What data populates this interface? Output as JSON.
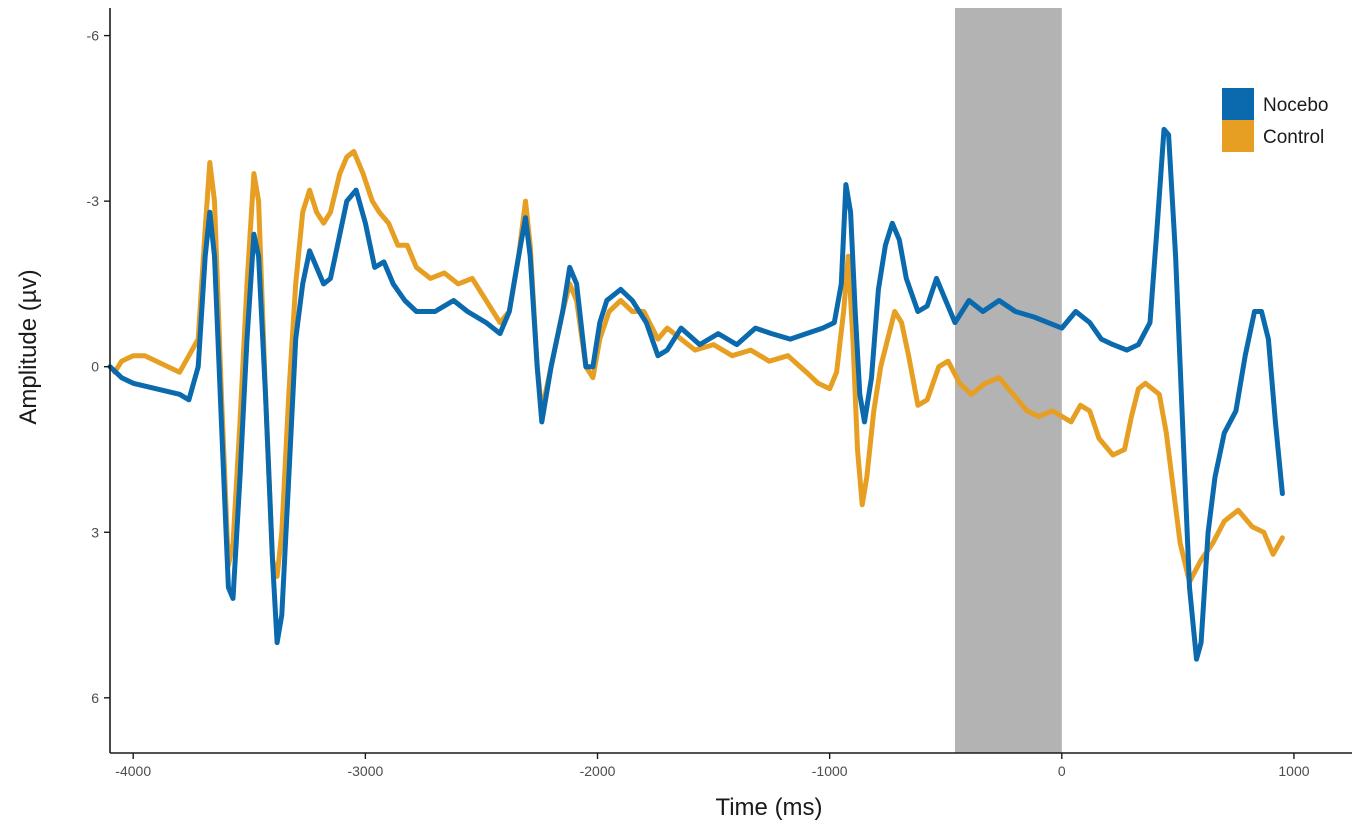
{
  "chart_data": {
    "type": "line",
    "title": "",
    "xlabel": "Time (ms)",
    "ylabel": "Amplitude (µv)",
    "y_reversed": true,
    "xlim": [
      -4100,
      1250
    ],
    "ylim": [
      -6.5,
      7.0
    ],
    "x_ticks": [
      -4000,
      -3000,
      -2000,
      -1000,
      0,
      1000
    ],
    "x_tick_labels": [
      "-4000",
      "-3000",
      "-2000",
      "-1000",
      "0",
      "1000"
    ],
    "y_ticks": [
      -6,
      -3,
      0,
      3,
      6
    ],
    "y_tick_labels": [
      "-6",
      "-3",
      "0",
      "3",
      "6"
    ],
    "grid": false,
    "legend_position": "top-right",
    "shaded_region": {
      "x_start": -460,
      "x_end": 0,
      "color": "#b3b3b3"
    },
    "series": [
      {
        "name": "Nocebo",
        "color": "#0a6aad",
        "points": [
          [
            -4100,
            0.0
          ],
          [
            -4050,
            0.2
          ],
          [
            -4000,
            0.3
          ],
          [
            -3900,
            0.4
          ],
          [
            -3800,
            0.5
          ],
          [
            -3760,
            0.6
          ],
          [
            -3720,
            0.0
          ],
          [
            -3690,
            -2.0
          ],
          [
            -3670,
            -2.8
          ],
          [
            -3650,
            -2.0
          ],
          [
            -3620,
            1.0
          ],
          [
            -3590,
            4.0
          ],
          [
            -3570,
            4.2
          ],
          [
            -3540,
            2.0
          ],
          [
            -3510,
            -0.5
          ],
          [
            -3480,
            -2.4
          ],
          [
            -3460,
            -2.0
          ],
          [
            -3430,
            0.5
          ],
          [
            -3400,
            3.5
          ],
          [
            -3380,
            5.0
          ],
          [
            -3360,
            4.5
          ],
          [
            -3330,
            2.0
          ],
          [
            -3300,
            -0.5
          ],
          [
            -3270,
            -1.5
          ],
          [
            -3240,
            -2.1
          ],
          [
            -3210,
            -1.8
          ],
          [
            -3180,
            -1.5
          ],
          [
            -3150,
            -1.6
          ],
          [
            -3120,
            -2.2
          ],
          [
            -3080,
            -3.0
          ],
          [
            -3040,
            -3.2
          ],
          [
            -3000,
            -2.6
          ],
          [
            -2960,
            -1.8
          ],
          [
            -2920,
            -1.9
          ],
          [
            -2880,
            -1.5
          ],
          [
            -2830,
            -1.2
          ],
          [
            -2780,
            -1.0
          ],
          [
            -2700,
            -1.0
          ],
          [
            -2620,
            -1.2
          ],
          [
            -2560,
            -1.0
          ],
          [
            -2480,
            -0.8
          ],
          [
            -2420,
            -0.6
          ],
          [
            -2380,
            -1.0
          ],
          [
            -2340,
            -2.0
          ],
          [
            -2310,
            -2.7
          ],
          [
            -2290,
            -2.0
          ],
          [
            -2260,
            0.0
          ],
          [
            -2240,
            1.0
          ],
          [
            -2200,
            0.0
          ],
          [
            -2150,
            -1.0
          ],
          [
            -2120,
            -1.8
          ],
          [
            -2090,
            -1.5
          ],
          [
            -2050,
            0.0
          ],
          [
            -2020,
            0.0
          ],
          [
            -1990,
            -0.8
          ],
          [
            -1960,
            -1.2
          ],
          [
            -1900,
            -1.4
          ],
          [
            -1850,
            -1.2
          ],
          [
            -1790,
            -0.8
          ],
          [
            -1740,
            -0.2
          ],
          [
            -1700,
            -0.3
          ],
          [
            -1640,
            -0.7
          ],
          [
            -1560,
            -0.4
          ],
          [
            -1480,
            -0.6
          ],
          [
            -1400,
            -0.4
          ],
          [
            -1320,
            -0.7
          ],
          [
            -1250,
            -0.6
          ],
          [
            -1170,
            -0.5
          ],
          [
            -1100,
            -0.6
          ],
          [
            -1030,
            -0.7
          ],
          [
            -980,
            -0.8
          ],
          [
            -950,
            -1.5
          ],
          [
            -930,
            -3.3
          ],
          [
            -910,
            -2.8
          ],
          [
            -890,
            -1.0
          ],
          [
            -870,
            0.5
          ],
          [
            -850,
            1.0
          ],
          [
            -820,
            0.2
          ],
          [
            -790,
            -1.4
          ],
          [
            -760,
            -2.2
          ],
          [
            -730,
            -2.6
          ],
          [
            -700,
            -2.3
          ],
          [
            -670,
            -1.6
          ],
          [
            -620,
            -1.0
          ],
          [
            -580,
            -1.1
          ],
          [
            -540,
            -1.6
          ],
          [
            -500,
            -1.2
          ],
          [
            -460,
            -0.8
          ],
          [
            -400,
            -1.2
          ],
          [
            -340,
            -1.0
          ],
          [
            -270,
            -1.2
          ],
          [
            -200,
            -1.0
          ],
          [
            -120,
            -0.9
          ],
          [
            -60,
            -0.8
          ],
          [
            0,
            -0.7
          ],
          [
            60,
            -1.0
          ],
          [
            120,
            -0.8
          ],
          [
            170,
            -0.5
          ],
          [
            220,
            -0.4
          ],
          [
            280,
            -0.3
          ],
          [
            330,
            -0.4
          ],
          [
            380,
            -0.8
          ],
          [
            410,
            -2.5
          ],
          [
            440,
            -4.3
          ],
          [
            460,
            -4.2
          ],
          [
            490,
            -2.0
          ],
          [
            520,
            1.0
          ],
          [
            550,
            4.0
          ],
          [
            580,
            5.3
          ],
          [
            600,
            5.0
          ],
          [
            630,
            3.0
          ],
          [
            660,
            2.0
          ],
          [
            700,
            1.2
          ],
          [
            750,
            0.8
          ],
          [
            790,
            -0.2
          ],
          [
            830,
            -1.0
          ],
          [
            860,
            -1.0
          ],
          [
            890,
            -0.5
          ],
          [
            920,
            1.0
          ],
          [
            950,
            2.3
          ]
        ]
      },
      {
        "name": "Control",
        "color": "#e69f22",
        "points": [
          [
            -4080,
            0.1
          ],
          [
            -4050,
            -0.1
          ],
          [
            -4000,
            -0.2
          ],
          [
            -3950,
            -0.2
          ],
          [
            -3900,
            -0.1
          ],
          [
            -3850,
            0.0
          ],
          [
            -3800,
            0.1
          ],
          [
            -3760,
            -0.2
          ],
          [
            -3720,
            -0.5
          ],
          [
            -3690,
            -2.5
          ],
          [
            -3670,
            -3.7
          ],
          [
            -3650,
            -3.0
          ],
          [
            -3620,
            0.5
          ],
          [
            -3590,
            3.6
          ],
          [
            -3570,
            3.2
          ],
          [
            -3540,
            1.0
          ],
          [
            -3510,
            -1.5
          ],
          [
            -3480,
            -3.5
          ],
          [
            -3460,
            -3.0
          ],
          [
            -3430,
            0.5
          ],
          [
            -3400,
            3.5
          ],
          [
            -3380,
            3.8
          ],
          [
            -3360,
            3.0
          ],
          [
            -3330,
            0.5
          ],
          [
            -3300,
            -1.5
          ],
          [
            -3270,
            -2.8
          ],
          [
            -3240,
            -3.2
          ],
          [
            -3210,
            -2.8
          ],
          [
            -3180,
            -2.6
          ],
          [
            -3150,
            -2.8
          ],
          [
            -3110,
            -3.5
          ],
          [
            -3080,
            -3.8
          ],
          [
            -3050,
            -3.9
          ],
          [
            -3010,
            -3.5
          ],
          [
            -2970,
            -3.0
          ],
          [
            -2940,
            -2.8
          ],
          [
            -2900,
            -2.6
          ],
          [
            -2860,
            -2.2
          ],
          [
            -2820,
            -2.2
          ],
          [
            -2780,
            -1.8
          ],
          [
            -2720,
            -1.6
          ],
          [
            -2660,
            -1.7
          ],
          [
            -2600,
            -1.5
          ],
          [
            -2540,
            -1.6
          ],
          [
            -2480,
            -1.2
          ],
          [
            -2420,
            -0.8
          ],
          [
            -2380,
            -1.0
          ],
          [
            -2340,
            -2.0
          ],
          [
            -2310,
            -3.0
          ],
          [
            -2290,
            -2.2
          ],
          [
            -2260,
            0.0
          ],
          [
            -2240,
            0.8
          ],
          [
            -2200,
            0.0
          ],
          [
            -2150,
            -1.0
          ],
          [
            -2120,
            -1.5
          ],
          [
            -2090,
            -1.2
          ],
          [
            -2050,
            0.0
          ],
          [
            -2020,
            0.2
          ],
          [
            -1990,
            -0.5
          ],
          [
            -1950,
            -1.0
          ],
          [
            -1900,
            -1.2
          ],
          [
            -1850,
            -1.0
          ],
          [
            -1800,
            -1.0
          ],
          [
            -1740,
            -0.5
          ],
          [
            -1700,
            -0.7
          ],
          [
            -1640,
            -0.5
          ],
          [
            -1580,
            -0.3
          ],
          [
            -1500,
            -0.4
          ],
          [
            -1420,
            -0.2
          ],
          [
            -1340,
            -0.3
          ],
          [
            -1260,
            -0.1
          ],
          [
            -1180,
            -0.2
          ],
          [
            -1100,
            0.1
          ],
          [
            -1050,
            0.3
          ],
          [
            -1000,
            0.4
          ],
          [
            -970,
            0.1
          ],
          [
            -940,
            -1.0
          ],
          [
            -920,
            -2.0
          ],
          [
            -900,
            -0.5
          ],
          [
            -880,
            1.5
          ],
          [
            -860,
            2.5
          ],
          [
            -840,
            2.0
          ],
          [
            -810,
            0.8
          ],
          [
            -780,
            0.0
          ],
          [
            -750,
            -0.5
          ],
          [
            -720,
            -1.0
          ],
          [
            -690,
            -0.8
          ],
          [
            -660,
            -0.2
          ],
          [
            -620,
            0.7
          ],
          [
            -580,
            0.6
          ],
          [
            -530,
            0.0
          ],
          [
            -490,
            -0.1
          ],
          [
            -440,
            0.3
          ],
          [
            -390,
            0.5
          ],
          [
            -330,
            0.3
          ],
          [
            -270,
            0.2
          ],
          [
            -210,
            0.5
          ],
          [
            -150,
            0.8
          ],
          [
            -100,
            0.9
          ],
          [
            -40,
            0.8
          ],
          [
            0,
            0.9
          ],
          [
            40,
            1.0
          ],
          [
            80,
            0.7
          ],
          [
            120,
            0.8
          ],
          [
            160,
            1.3
          ],
          [
            220,
            1.6
          ],
          [
            270,
            1.5
          ],
          [
            300,
            0.9
          ],
          [
            330,
            0.4
          ],
          [
            360,
            0.3
          ],
          [
            390,
            0.4
          ],
          [
            420,
            0.5
          ],
          [
            450,
            1.2
          ],
          [
            480,
            2.2
          ],
          [
            510,
            3.2
          ],
          [
            550,
            3.9
          ],
          [
            600,
            3.5
          ],
          [
            650,
            3.2
          ],
          [
            700,
            2.8
          ],
          [
            760,
            2.6
          ],
          [
            820,
            2.9
          ],
          [
            870,
            3.0
          ],
          [
            910,
            3.4
          ],
          [
            950,
            3.1
          ]
        ]
      }
    ]
  }
}
